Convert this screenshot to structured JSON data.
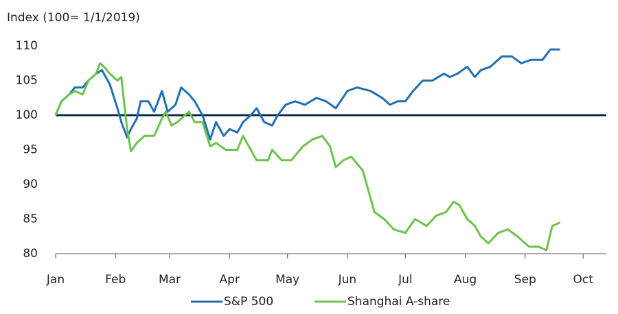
{
  "chart_data": {
    "type": "line",
    "title": "Index (100= 1/1/2019)",
    "xlim": [
      0,
      285
    ],
    "xticks": [
      {
        "value": 0,
        "label": "Jan"
      },
      {
        "value": 31,
        "label": "Feb"
      },
      {
        "value": 59,
        "label": "Mar"
      },
      {
        "value": 90,
        "label": "Apr"
      },
      {
        "value": 120,
        "label": "May"
      },
      {
        "value": 151,
        "label": "Jun"
      },
      {
        "value": 181,
        "label": "Jul"
      },
      {
        "value": 212,
        "label": "Aug"
      },
      {
        "value": 243,
        "label": "Sep"
      },
      {
        "value": 273,
        "label": "Oct"
      }
    ],
    "ylim": [
      80,
      110
    ],
    "yticks": [
      80,
      85,
      90,
      95,
      100,
      105,
      110
    ],
    "reference_line": {
      "y": 100,
      "color": "#0d2a4f"
    },
    "legend": "bottom",
    "series": [
      {
        "name": "S&P 500",
        "color": "#1f6fb2",
        "x": [
          0,
          3,
          7,
          10,
          14,
          17,
          21,
          24,
          28,
          32,
          34,
          37,
          39,
          42,
          44,
          48,
          51,
          55,
          58,
          62,
          65,
          69,
          72,
          76,
          80,
          83,
          87,
          90,
          94,
          97,
          101,
          104,
          108,
          112,
          115,
          119,
          124,
          129,
          135,
          140,
          145,
          151,
          156,
          163,
          169,
          173,
          177,
          181,
          185,
          190,
          195,
          201,
          204,
          208,
          213,
          217,
          220,
          225,
          231,
          236,
          241,
          246,
          252,
          256,
          261
        ],
        "values": [
          100,
          102,
          103,
          104,
          104,
          105,
          106,
          106.5,
          104.5,
          101,
          99,
          96.8,
          98,
          99.5,
          102,
          102,
          100.5,
          103.5,
          100.5,
          101.5,
          104,
          103,
          102,
          100,
          96.5,
          99,
          97,
          98,
          97.5,
          99,
          100,
          101,
          99,
          98.5,
          100,
          101.5,
          102,
          101.5,
          102.5,
          102,
          101,
          103.5,
          104,
          103.5,
          102.5,
          101.5,
          102,
          102,
          103.5,
          105,
          105,
          106,
          105.5,
          106,
          107,
          105.5,
          106.5,
          107,
          108.5,
          108.5,
          107.5,
          108,
          108,
          109.5,
          109.5
        ]
      },
      {
        "name": "Shanghai A-share",
        "color": "#6cc24a",
        "x": [
          0,
          3,
          7,
          10,
          14,
          17,
          21,
          23,
          25,
          28,
          32,
          34,
          37,
          39,
          42,
          46,
          51,
          55,
          57,
          60,
          63,
          69,
          72,
          76,
          80,
          83,
          88,
          94,
          97,
          101,
          104,
          110,
          112,
          117,
          122,
          128,
          133,
          138,
          142,
          145,
          149,
          153,
          159,
          165,
          170,
          175,
          181,
          186,
          192,
          197,
          202,
          206,
          209,
          213,
          217,
          220,
          224,
          229,
          234,
          239,
          245,
          250,
          254,
          257,
          261
        ],
        "values": [
          100,
          102,
          103,
          103.5,
          103,
          105,
          106,
          107.5,
          107,
          106,
          105,
          105.5,
          98,
          94.8,
          96,
          97,
          97,
          99.5,
          100.5,
          98.5,
          99,
          100.5,
          99,
          99,
          95.5,
          96,
          95,
          95,
          97,
          95,
          93.5,
          93.5,
          95,
          93.5,
          93.5,
          95.5,
          96.5,
          97,
          95.5,
          92.5,
          93.5,
          94,
          92,
          86,
          85,
          83.5,
          83,
          85,
          84,
          85.5,
          86,
          87.5,
          87,
          85,
          84,
          82.5,
          81.5,
          83,
          83.5,
          82.5,
          81,
          81,
          80.5,
          84,
          84.5
        ]
      }
    ]
  }
}
